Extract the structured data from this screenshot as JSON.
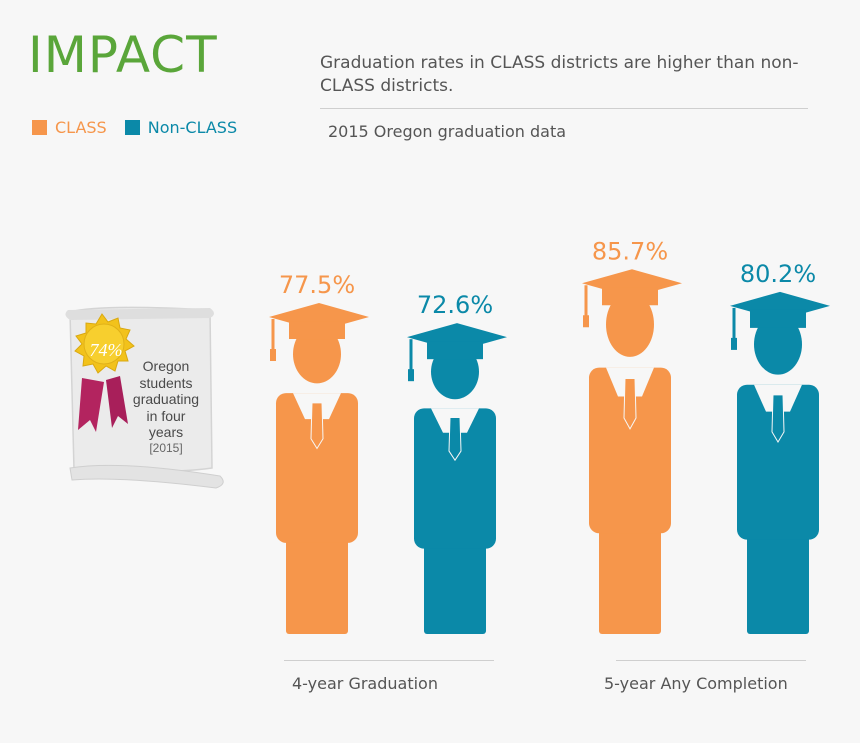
{
  "title": "IMPACT",
  "headline": "Graduation rates in CLASS districts are higher than non-CLASS districts.",
  "subhead": "2015 Oregon graduation data",
  "colors": {
    "class": "#f6964b",
    "non_class": "#0b89a8",
    "title": "#5aa63a"
  },
  "legend": [
    {
      "label": "CLASS",
      "color": "#f6964b"
    },
    {
      "label": "Non-CLASS",
      "color": "#0b89a8"
    }
  ],
  "badge": {
    "value": "74%",
    "line1": "Oregon",
    "line2": "students",
    "line3": "graduating",
    "line4": "in four",
    "line5": "years",
    "year": "[2015]"
  },
  "chart_data": {
    "type": "bar",
    "title": "2015 Oregon graduation data",
    "categories": [
      "4-year Graduation",
      "5-year Any Completion"
    ],
    "series": [
      {
        "name": "CLASS",
        "values": [
          77.5,
          85.7
        ],
        "labels": [
          "77.5%",
          "85.7%"
        ]
      },
      {
        "name": "Non-CLASS",
        "values": [
          72.6,
          80.2
        ],
        "labels": [
          "72.6%",
          "80.2%"
        ]
      }
    ],
    "ylim": [
      0,
      100
    ],
    "legend": "top-left"
  }
}
